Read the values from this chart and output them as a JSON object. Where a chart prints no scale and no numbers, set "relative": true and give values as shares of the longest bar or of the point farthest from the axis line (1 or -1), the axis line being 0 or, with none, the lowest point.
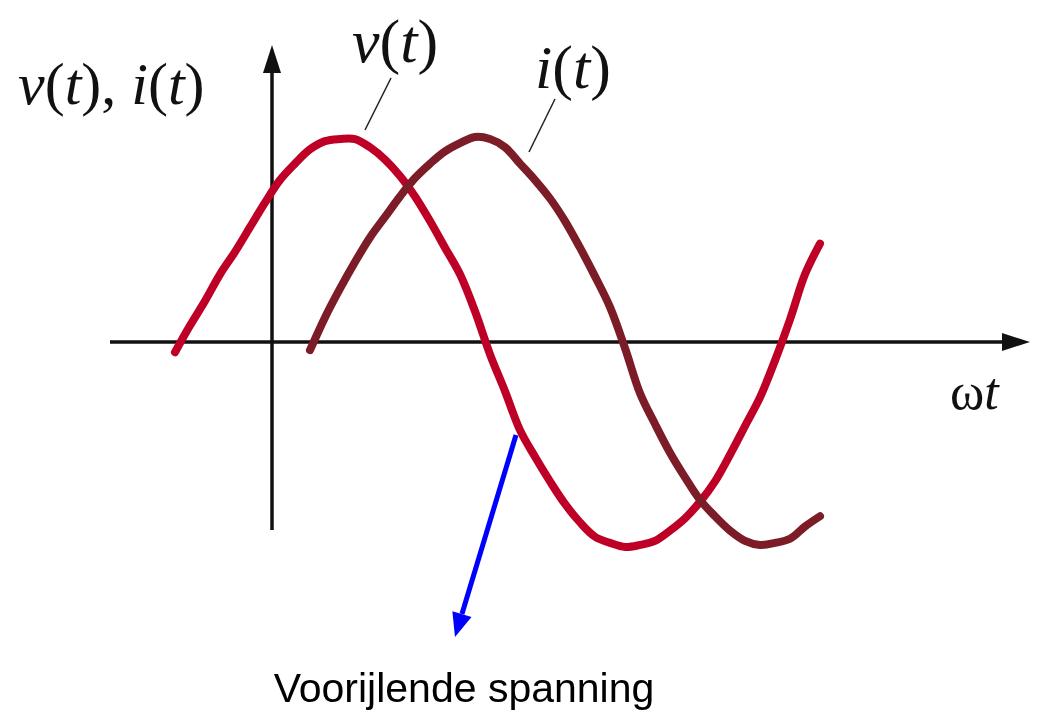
{
  "chart_data": {
    "type": "line",
    "relative": true,
    "xlabel": "ωt",
    "ylabel": "v(t), i(t)",
    "categories": [
      null,
      null,
      null,
      null,
      null,
      null,
      null,
      null,
      null,
      null,
      null,
      null,
      null,
      null,
      null,
      null,
      null,
      null,
      null,
      null,
      null,
      null,
      null,
      null,
      null,
      null,
      null,
      null,
      null,
      null,
      null,
      null,
      null,
      null,
      null,
      null,
      null,
      null,
      null,
      null,
      null,
      null,
      null,
      null
    ],
    "series": [
      {
        "name": "v(t)",
        "color": "#be0027",
        "values": [
          -0.05,
          0.08,
          0.2,
          0.33,
          0.44,
          0.56,
          0.68,
          0.79,
          0.87,
          0.94,
          0.98,
          0.99,
          0.99,
          0.95,
          0.89,
          0.81,
          0.71,
          0.59,
          0.46,
          0.33,
          0.15,
          -0.06,
          -0.24,
          -0.43,
          -0.56,
          -0.68,
          -0.79,
          -0.88,
          -0.95,
          -0.98,
          -1,
          -0.99,
          -0.97,
          -0.92,
          -0.86,
          -0.78,
          -0.68,
          -0.55,
          -0.41,
          -0.27,
          -0.09,
          0.11,
          0.33,
          0.48
        ]
      },
      {
        "name": "i(t)",
        "color": "#7b1c27",
        "values": [
          null,
          null,
          null,
          null,
          null,
          null,
          null,
          null,
          null,
          -0.04,
          0.12,
          0.26,
          0.39,
          0.51,
          0.61,
          0.71,
          0.8,
          0.87,
          0.93,
          0.97,
          1,
          0.99,
          0.95,
          0.87,
          0.79,
          0.7,
          0.59,
          0.46,
          0.32,
          0.17,
          -0.03,
          -0.25,
          -0.4,
          -0.54,
          -0.66,
          -0.77,
          -0.85,
          -0.92,
          -0.97,
          -0.99,
          -0.98,
          -0.96,
          -0.9,
          -0.85
        ]
      }
    ],
    "annotations": [
      "Voorijlende spanning"
    ]
  }
}
